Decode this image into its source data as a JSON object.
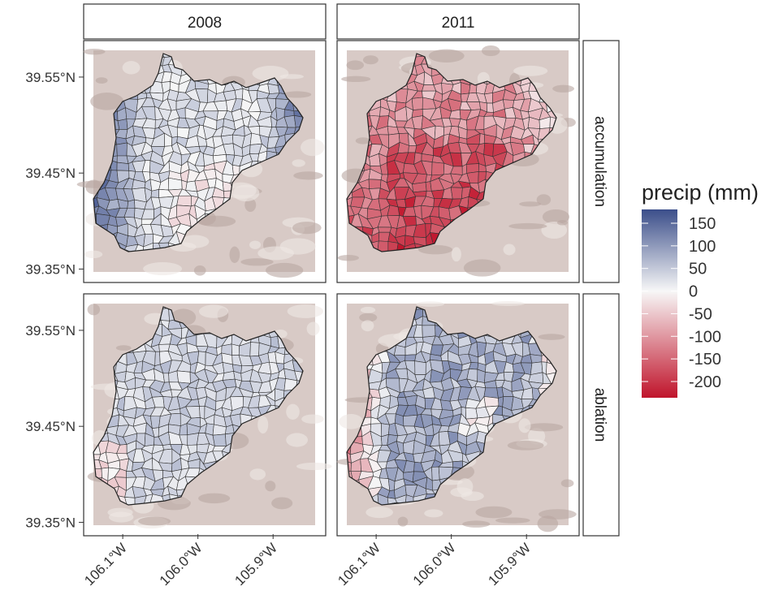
{
  "facets": {
    "columns": [
      "2008",
      "2011"
    ],
    "rows": [
      "accumulation",
      "ablation"
    ]
  },
  "axes": {
    "yticks": [
      {
        "value": 39.55,
        "label": "39.55°N"
      },
      {
        "value": 39.45,
        "label": "39.45°N"
      },
      {
        "value": 39.35,
        "label": "39.35°N"
      }
    ],
    "xticks": [
      {
        "value": -106.1,
        "label": "106.1°W"
      },
      {
        "value": -106.0,
        "label": "106.0°W"
      },
      {
        "value": -105.9,
        "label": "105.9°W"
      }
    ],
    "xlim": [
      -106.152,
      -105.83
    ],
    "ylim": [
      39.336,
      39.588
    ]
  },
  "legend": {
    "title": "precip (mm)",
    "ticks": [
      150,
      100,
      50,
      0,
      -50,
      -100,
      -150,
      -200
    ]
  }
}
